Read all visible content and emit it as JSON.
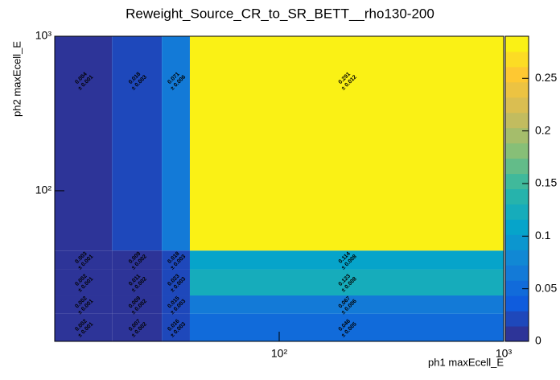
{
  "chart_data": {
    "type": "heatmap",
    "title": "Reweight_Source_CR_to_SR_BETT__rho130-200",
    "x_label": "ph1 maxEcell_E",
    "y_label": "ph2 maxEcell_E",
    "log_x": true,
    "log_y": true,
    "xlim": [
      10,
      1000
    ],
    "ylim": [
      10.6,
      1000
    ],
    "xticks": [
      {
        "value": 100,
        "label": "10²"
      },
      {
        "value": 1000,
        "label": "10³"
      }
    ],
    "yticks": [
      {
        "value": 100,
        "label": "10²"
      },
      {
        "value": 1000,
        "label": "10³"
      }
    ],
    "x_edges": [
      10,
      18,
      30,
      40,
      1000
    ],
    "y_edges": [
      10.6,
      16,
      21,
      31,
      41,
      1000
    ],
    "values": [
      [
        0.002,
        0.007,
        0.016,
        0.046
      ],
      [
        0.002,
        0.009,
        0.015,
        0.067
      ],
      [
        0.002,
        0.011,
        0.023,
        0.123
      ],
      [
        0.003,
        0.009,
        0.018,
        0.114
      ],
      [
        0.004,
        0.018,
        0.071,
        0.291
      ]
    ],
    "errors": [
      [
        0.001,
        0.002,
        0.003,
        0.005
      ],
      [
        0.001,
        0.002,
        0.003,
        0.006
      ],
      [
        0.001,
        0.002,
        0.003,
        0.008
      ],
      [
        0.001,
        0.002,
        0.003,
        0.008
      ],
      [
        0.001,
        0.003,
        0.006,
        0.012
      ]
    ],
    "error_labels": [
      [
        "± 0.001",
        "± 0.002",
        "± 0.003",
        "± 0.005"
      ],
      [
        "± 0.001",
        "± 0.002",
        "± 0.003",
        "± 0.006"
      ],
      [
        "± 0.001",
        "± 0.002",
        "± 0.003",
        "± 0.008"
      ],
      [
        "± 0.001",
        "± 0.002",
        "± 0.003",
        "± 0.008"
      ],
      [
        "± 0.001",
        "± 0.003",
        "± 0.006",
        "± 0.012"
      ]
    ],
    "zlim": [
      0,
      0.29
    ],
    "zticks": [
      0,
      0.05,
      0.1,
      0.15,
      0.2,
      0.25
    ],
    "palette": [
      "#352a87",
      "#0f5cdd",
      "#1481d6",
      "#06a4ca",
      "#2eb7a4",
      "#87bf77",
      "#d1bb59",
      "#fec832",
      "#f9fb0e"
    ],
    "contours": 20
  }
}
